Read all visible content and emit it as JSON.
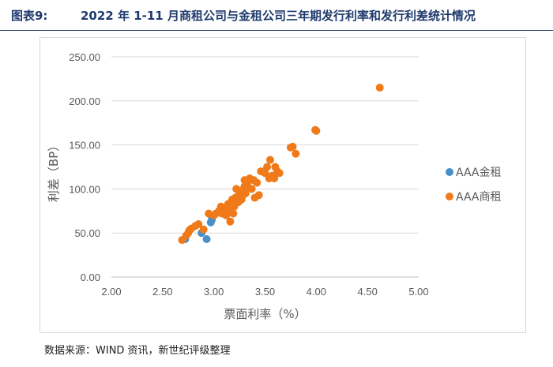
{
  "header": {
    "figure_label": "图表9:",
    "title": "2022 年 1-11 月商租公司与金租公司三年期发行利率和发行利差统计情况"
  },
  "source_note": "数据来源：WIND 资讯，新世纪评级整理",
  "chart_data": {
    "type": "scatter",
    "xlabel": "票面利率（%）",
    "ylabel": "利差（BP）",
    "xlim": [
      2.0,
      5.0
    ],
    "ylim": [
      0,
      250
    ],
    "x_ticks": [
      "2.00",
      "2.50",
      "3.00",
      "3.50",
      "4.00",
      "4.50",
      "5.00"
    ],
    "y_ticks": [
      "0.00",
      "50.00",
      "100.00",
      "150.00",
      "200.00",
      "250.00"
    ],
    "grid": "horizontal",
    "legend_position": "right",
    "series": [
      {
        "name": "AAA金租",
        "color": "#4a90c8",
        "points": [
          [
            2.72,
            43
          ],
          [
            2.88,
            50
          ],
          [
            2.93,
            43
          ],
          [
            2.97,
            62
          ],
          [
            2.98,
            65
          ]
        ]
      },
      {
        "name": "AAA商租",
        "color": "#f07a1a",
        "points": [
          [
            2.69,
            42
          ],
          [
            2.73,
            47
          ],
          [
            2.75,
            50
          ],
          [
            2.76,
            53
          ],
          [
            2.78,
            55
          ],
          [
            2.82,
            58
          ],
          [
            2.85,
            60
          ],
          [
            2.9,
            54
          ],
          [
            2.95,
            72
          ],
          [
            3.0,
            70
          ],
          [
            3.02,
            72
          ],
          [
            3.05,
            75
          ],
          [
            3.07,
            80
          ],
          [
            3.08,
            72
          ],
          [
            3.1,
            78
          ],
          [
            3.12,
            70
          ],
          [
            3.14,
            83
          ],
          [
            3.15,
            75
          ],
          [
            3.16,
            63
          ],
          [
            3.18,
            88
          ],
          [
            3.19,
            72
          ],
          [
            3.2,
            80
          ],
          [
            3.21,
            90
          ],
          [
            3.22,
            100
          ],
          [
            3.24,
            85
          ],
          [
            3.25,
            95
          ],
          [
            3.26,
            97
          ],
          [
            3.27,
            88
          ],
          [
            3.28,
            92
          ],
          [
            3.29,
            100
          ],
          [
            3.3,
            103
          ],
          [
            3.3,
            110
          ],
          [
            3.31,
            95
          ],
          [
            3.32,
            102
          ],
          [
            3.33,
            107
          ],
          [
            3.35,
            112
          ],
          [
            3.37,
            100
          ],
          [
            3.39,
            110
          ],
          [
            3.4,
            90
          ],
          [
            3.42,
            107
          ],
          [
            3.44,
            93
          ],
          [
            3.46,
            120
          ],
          [
            3.5,
            118
          ],
          [
            3.52,
            125
          ],
          [
            3.54,
            112
          ],
          [
            3.55,
            133
          ],
          [
            3.57,
            115
          ],
          [
            3.59,
            112
          ],
          [
            3.6,
            125
          ],
          [
            3.62,
            120
          ],
          [
            3.64,
            118
          ],
          [
            3.75,
            147
          ],
          [
            3.77,
            148
          ],
          [
            3.8,
            140
          ],
          [
            3.99,
            167
          ],
          [
            4.0,
            166
          ],
          [
            4.62,
            215
          ]
        ]
      }
    ]
  }
}
